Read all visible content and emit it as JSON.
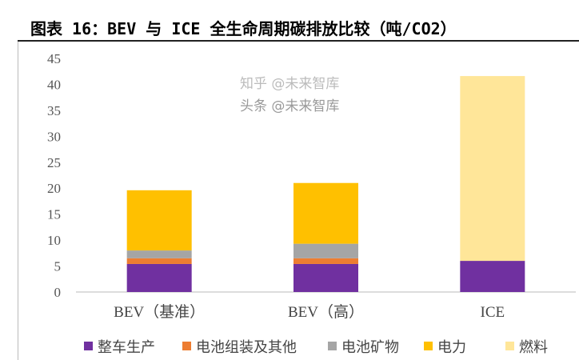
{
  "title": "图表 16：BEV 与 ICE 全生命周期碳排放比较（吨/CO2）",
  "chart_data": {
    "type": "bar",
    "stacked": true,
    "title": "图表 16：BEV 与 ICE 全生命周期碳排放比较（吨/CO2）",
    "xlabel": "",
    "ylabel": "",
    "categories": [
      "BEV（基准）",
      "BEV（高）",
      "ICE"
    ],
    "ylim": [
      0,
      45
    ],
    "yticks": [
      0,
      5,
      10,
      15,
      20,
      25,
      30,
      35,
      40,
      45
    ],
    "grid": false,
    "legend_position": "bottom",
    "series": [
      {
        "name": "整车生产",
        "color": "#7030A0",
        "values": [
          5.4,
          5.4,
          6.0
        ]
      },
      {
        "name": "电池组装及其他",
        "color": "#ED7D31",
        "values": [
          1.1,
          1.1,
          0
        ]
      },
      {
        "name": "电池矿物",
        "color": "#A5A5A5",
        "values": [
          1.5,
          2.8,
          0
        ]
      },
      {
        "name": "电力",
        "color": "#FFC000",
        "values": [
          11.6,
          11.7,
          0
        ]
      },
      {
        "name": "燃料",
        "color": "#FFE699",
        "values": [
          0,
          0,
          35.6
        ]
      }
    ]
  },
  "watermarks": [
    "知乎 @未来智库",
    "头条 @未来智库"
  ]
}
